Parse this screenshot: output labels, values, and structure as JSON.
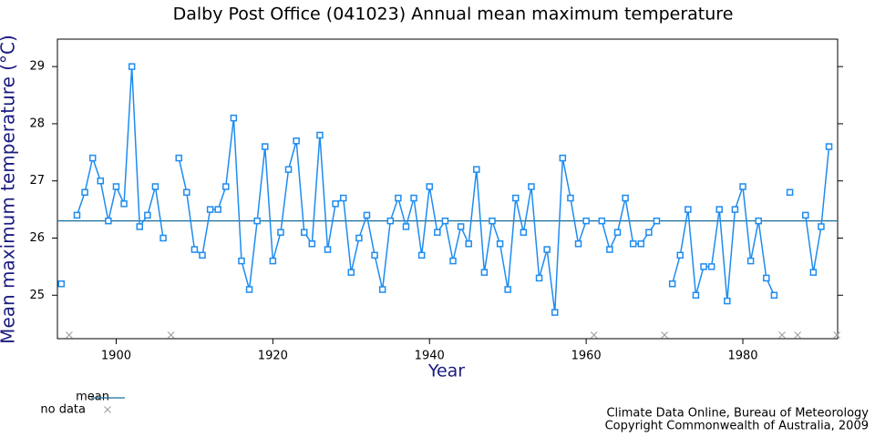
{
  "chart_data": {
    "type": "line",
    "title": "Dalby Post Office (041023) Annual mean maximum temperature",
    "xlabel": "Year",
    "ylabel": "Mean maximum temperature (°C)",
    "x": [
      1893,
      1894,
      1895,
      1896,
      1897,
      1898,
      1899,
      1900,
      1901,
      1902,
      1903,
      1904,
      1905,
      1906,
      1907,
      1908,
      1909,
      1910,
      1911,
      1912,
      1913,
      1914,
      1915,
      1916,
      1917,
      1918,
      1919,
      1920,
      1921,
      1922,
      1923,
      1924,
      1925,
      1926,
      1927,
      1928,
      1929,
      1930,
      1931,
      1932,
      1933,
      1934,
      1935,
      1936,
      1937,
      1938,
      1939,
      1940,
      1941,
      1942,
      1943,
      1944,
      1945,
      1946,
      1947,
      1948,
      1949,
      1950,
      1951,
      1952,
      1953,
      1954,
      1955,
      1956,
      1957,
      1958,
      1959,
      1960,
      1961,
      1962,
      1963,
      1964,
      1965,
      1966,
      1967,
      1968,
      1969,
      1970,
      1971,
      1972,
      1973,
      1974,
      1975,
      1976,
      1977,
      1978,
      1979,
      1980,
      1981,
      1982,
      1983,
      1984,
      1985,
      1986,
      1987,
      1988,
      1989,
      1990,
      1991,
      1992
    ],
    "series": [
      {
        "color": "#1e8cf0",
        "values": [
          25.2,
          null,
          26.4,
          26.8,
          27.4,
          27.0,
          26.3,
          26.9,
          26.6,
          29.0,
          26.2,
          26.4,
          26.9,
          26.0,
          null,
          27.4,
          26.8,
          25.8,
          25.7,
          26.5,
          26.5,
          26.9,
          28.1,
          25.6,
          25.1,
          26.3,
          27.6,
          25.6,
          26.1,
          27.2,
          27.7,
          26.1,
          25.9,
          27.8,
          25.8,
          26.6,
          26.7,
          25.4,
          26.0,
          26.4,
          25.7,
          25.1,
          26.3,
          26.7,
          26.2,
          26.7,
          25.7,
          26.9,
          26.1,
          26.3,
          25.6,
          26.2,
          25.9,
          27.2,
          25.4,
          26.3,
          25.9,
          25.1,
          26.7,
          26.1,
          26.9,
          25.3,
          25.8,
          24.7,
          27.4,
          26.7,
          25.9,
          26.3,
          null,
          26.3,
          25.8,
          26.1,
          26.7,
          25.9,
          25.9,
          26.1,
          26.3,
          null,
          25.2,
          25.7,
          26.5,
          25.0,
          25.5,
          25.5,
          26.5,
          24.9,
          26.5,
          26.9,
          25.6,
          26.3,
          25.3,
          25.0,
          null,
          26.8,
          null,
          26.4,
          25.4,
          26.2,
          27.6,
          null
        ]
      }
    ],
    "mean": {
      "name": "mean",
      "value": 26.3,
      "color": "#1a6e9a"
    },
    "missing": {
      "name": "no data",
      "color": "#9a9a9a"
    },
    "xlim": [
      1892.5,
      1992.1
    ],
    "xticks": [
      1900,
      1920,
      1940,
      1960,
      1980
    ],
    "ylim": [
      24.24,
      29.48
    ],
    "yticks": [
      25,
      26,
      27,
      28,
      29
    ],
    "credits": [
      "Climate Data Online, Bureau of Meteorology",
      "Copyright Commonwealth of Australia, 2009"
    ]
  }
}
